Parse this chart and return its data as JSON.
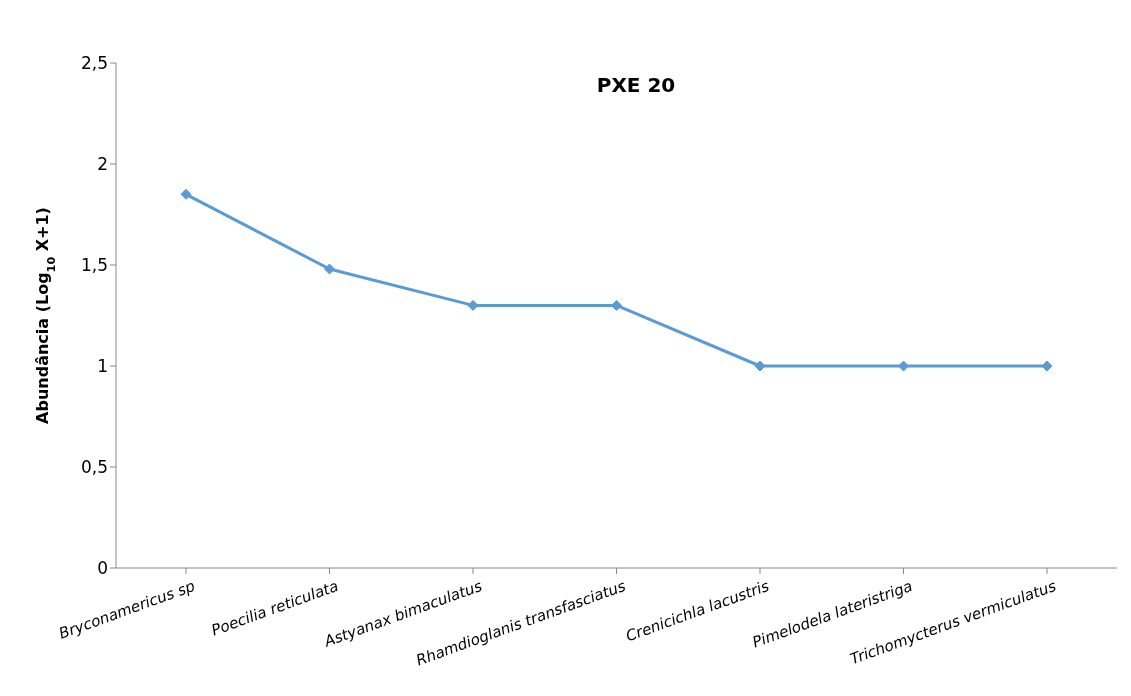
{
  "chart_data": {
    "type": "line",
    "title": "PXE 20",
    "ylabel": "Abundância (Log$_{10}$ X+1)",
    "categories": [
      "Bryconamericus sp",
      "Poecilia reticulata",
      "Astyanax bimaculatus",
      "Rhamdioglanis transfasciatus",
      "Crenicichla lacustris",
      "Pimelodela lateristriga",
      "Trichomycterus vermiculatus"
    ],
    "series": [
      {
        "color": "#5b9bd5",
        "values": [
          1.85,
          1.48,
          1.3,
          1.3,
          1,
          1,
          1
        ]
      }
    ],
    "ylim": [
      0,
      2.5
    ],
    "yticks": [
      0,
      {
        "value": 0.5,
        "label": "0,5"
      },
      1,
      {
        "value": 1.5,
        "label": "1,5"
      },
      2,
      {
        "value": 2.5,
        "label": "2,5"
      }
    ],
    "marker": "diamond",
    "line_style": "solid"
  }
}
